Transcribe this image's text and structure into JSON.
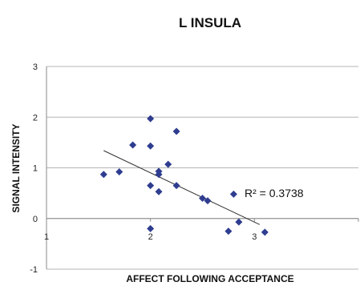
{
  "chart_data": {
    "type": "scatter",
    "title": "L INSULA",
    "xlabel": "AFFECT FOLLOWING ACCEPTANCE",
    "ylabel": "SIGNAL INTENSITY",
    "xlim": [
      1,
      4
    ],
    "ylim": [
      -1,
      3
    ],
    "x_ticks": [
      "1",
      "2",
      "3"
    ],
    "y_ticks": [
      "3",
      "2",
      "1",
      "0",
      "-1"
    ],
    "grid": true,
    "marker_color": "#2e3d8f",
    "points": [
      {
        "x": 1.55,
        "y": 0.87
      },
      {
        "x": 1.7,
        "y": 0.92
      },
      {
        "x": 1.83,
        "y": 1.45
      },
      {
        "x": 2.0,
        "y": 1.97
      },
      {
        "x": 2.0,
        "y": 1.43
      },
      {
        "x": 2.25,
        "y": 1.72
      },
      {
        "x": 2.17,
        "y": 1.07
      },
      {
        "x": 2.08,
        "y": 0.93
      },
      {
        "x": 2.08,
        "y": 0.87
      },
      {
        "x": 2.0,
        "y": 0.65
      },
      {
        "x": 2.25,
        "y": 0.65
      },
      {
        "x": 2.08,
        "y": 0.53
      },
      {
        "x": 2.5,
        "y": 0.4
      },
      {
        "x": 2.55,
        "y": 0.35
      },
      {
        "x": 2.8,
        "y": 0.48
      },
      {
        "x": 2.85,
        "y": -0.07
      },
      {
        "x": 2.75,
        "y": -0.25
      },
      {
        "x": 3.1,
        "y": -0.27
      },
      {
        "x": 2.0,
        "y": -0.2
      }
    ],
    "trendline": {
      "x": [
        1.55,
        3.05
      ],
      "y": [
        1.34,
        -0.12
      ],
      "annotation": "R² = 0.3738"
    }
  }
}
